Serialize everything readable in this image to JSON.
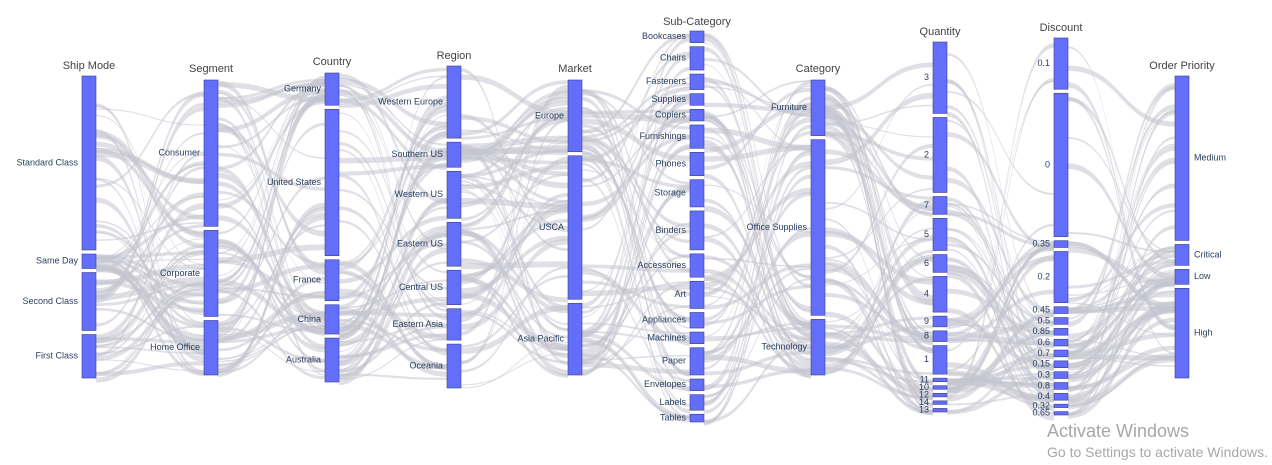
{
  "chart_data": {
    "type": "parallel-categories",
    "colors": {
      "bar": "#636efa",
      "ribbon": "#c5c5d0",
      "bar_edge": "#3b3f8c"
    },
    "dimensions": [
      {
        "label": "Ship Mode",
        "categories": [
          "Standard Class",
          "Same Day",
          "Second Class",
          "First Class"
        ],
        "shares": [
          0.6,
          0.05,
          0.2,
          0.15
        ]
      },
      {
        "label": "Segment",
        "categories": [
          "Consumer",
          "Corporate",
          "Home Office"
        ],
        "shares": [
          0.51,
          0.3,
          0.19
        ]
      },
      {
        "label": "Country",
        "categories": [
          "Germany",
          "United States",
          "France",
          "China",
          "Australia"
        ],
        "shares": [
          0.11,
          0.5,
          0.14,
          0.1,
          0.15
        ]
      },
      {
        "label": "Region",
        "categories": [
          "Western Europe",
          "Southern US",
          "Western US",
          "Eastern US",
          "Central US",
          "Eastern Asia",
          "Oceania"
        ],
        "shares": [
          0.23,
          0.08,
          0.15,
          0.14,
          0.11,
          0.1,
          0.14
        ]
      },
      {
        "label": "Market",
        "categories": [
          "Europe",
          "USCA",
          "Asia Pacific"
        ],
        "shares": [
          0.25,
          0.5,
          0.25
        ]
      },
      {
        "label": "Sub-Category",
        "categories": [
          "Bookcases",
          "Chairs",
          "Fasteners",
          "Supplies",
          "Copiers",
          "Furnishings",
          "Phones",
          "Storage",
          "Binders",
          "Accessories",
          "Art",
          "Appliances",
          "Machines",
          "Paper",
          "Envelopes",
          "Labels",
          "Tables"
        ],
        "shares": [
          0.03,
          0.06,
          0.04,
          0.03,
          0.03,
          0.06,
          0.06,
          0.07,
          0.1,
          0.06,
          0.07,
          0.04,
          0.03,
          0.07,
          0.03,
          0.04,
          0.02
        ]
      },
      {
        "label": "Category",
        "categories": [
          "Furniture",
          "Office Supplies",
          "Technology"
        ],
        "shares": [
          0.19,
          0.6,
          0.19
        ]
      },
      {
        "label": "Quantity",
        "categories": [
          "3",
          "2",
          "7",
          "5",
          "6",
          "4",
          "9",
          "8",
          "1",
          "11",
          "10",
          "12",
          "14",
          "13"
        ],
        "shares": [
          0.2,
          0.21,
          0.05,
          0.09,
          0.05,
          0.1,
          0.03,
          0.03,
          0.08,
          0.01,
          0.01,
          0.01,
          0.01,
          0.01
        ]
      },
      {
        "label": "Discount",
        "categories": [
          "0.1",
          "0",
          "0.35",
          "0.2",
          "0.45",
          "0.5",
          "0.85",
          "0.6",
          "0.7",
          "0.15",
          "0.3",
          "0.8",
          "0.4",
          "0.32",
          "0.65"
        ],
        "shares": [
          0.15,
          0.42,
          0.02,
          0.15,
          0.02,
          0.02,
          0.02,
          0.02,
          0.02,
          0.02,
          0.02,
          0.02,
          0.02,
          0.01,
          0.01
        ]
      },
      {
        "label": "Order Priority",
        "categories": [
          "Medium",
          "Critical",
          "Low",
          "High"
        ],
        "shares": [
          0.55,
          0.07,
          0.05,
          0.3
        ]
      }
    ]
  },
  "watermark": {
    "title": "Activate Windows",
    "subtitle": "Go to Settings to activate Windows."
  }
}
